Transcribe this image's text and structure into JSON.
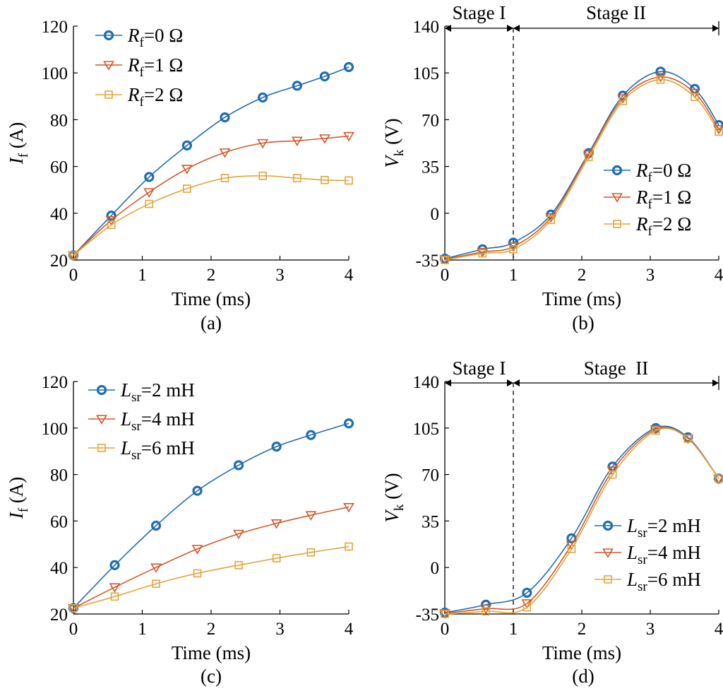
{
  "colors": {
    "blue": "#1f6db0",
    "red": "#d4572a",
    "yellow": "#e2a53a"
  },
  "chart_data": [
    {
      "panel": "(a)",
      "type": "line",
      "xlabel": "Time (ms)",
      "ylabel": {
        "base": "I",
        "sub": "f",
        "unit": " (A)"
      },
      "xlim": [
        0,
        4
      ],
      "ylim": [
        20,
        120
      ],
      "xticks": [
        0,
        1,
        2,
        3,
        4
      ],
      "yticks": [
        20,
        40,
        60,
        80,
        100,
        120
      ],
      "legend": {
        "position": "top-left"
      },
      "series": [
        {
          "name": {
            "base": "R",
            "sub": "f",
            "rest": "=0 Ω"
          },
          "marker": "circle",
          "color": "blue",
          "x": [
            0,
            0.55,
            1.1,
            1.65,
            2.2,
            2.75,
            3.25,
            3.65,
            4.0
          ],
          "y": [
            22,
            39,
            55.5,
            69,
            81,
            89.5,
            94.5,
            98.5,
            102.5
          ]
        },
        {
          "name": {
            "base": "R",
            "sub": "f",
            "rest": "=1 Ω"
          },
          "marker": "triangle-down",
          "color": "red",
          "x": [
            0,
            0.55,
            1.1,
            1.65,
            2.2,
            2.75,
            3.25,
            3.65,
            4.0
          ],
          "y": [
            22,
            37,
            49,
            59,
            66,
            70,
            71,
            72,
            73
          ]
        },
        {
          "name": {
            "base": "R",
            "sub": "f",
            "rest": "=2 Ω"
          },
          "marker": "square",
          "color": "yellow",
          "x": [
            0,
            0.55,
            1.1,
            1.65,
            2.2,
            2.75,
            3.25,
            3.65,
            4.0
          ],
          "y": [
            22,
            35,
            44,
            50.5,
            55,
            56,
            55,
            54.2,
            54
          ]
        }
      ]
    },
    {
      "panel": "(b)",
      "type": "line",
      "xlabel": "Time (ms)",
      "ylabel": {
        "base": "V",
        "sub": "k",
        "unit": " (V)"
      },
      "xlim": [
        0,
        4
      ],
      "ylim": [
        -35,
        140
      ],
      "xticks": [
        0,
        1,
        2,
        3,
        4
      ],
      "yticks": [
        -35,
        0,
        35,
        70,
        105,
        140
      ],
      "legend": {
        "position": "right"
      },
      "stages": {
        "boundary": 1.0,
        "stage1": "Stage I",
        "stage2": "Stage II"
      },
      "series": [
        {
          "name": {
            "base": "R",
            "sub": "f",
            "rest": "=0 Ω"
          },
          "marker": "circle",
          "color": "blue",
          "x": [
            0,
            0.55,
            1.0,
            1.55,
            2.1,
            2.6,
            3.15,
            3.65,
            4.0
          ],
          "y": [
            -34,
            -27,
            -22,
            -1,
            45,
            88,
            106,
            93,
            66
          ]
        },
        {
          "name": {
            "base": "R",
            "sub": "f",
            "rest": "=1 Ω"
          },
          "marker": "triangle-down",
          "color": "red",
          "x": [
            0,
            0.55,
            1.0,
            1.55,
            2.1,
            2.6,
            3.15,
            3.65,
            4.0
          ],
          "y": [
            -34.5,
            -29,
            -25,
            -3,
            44,
            86,
            102,
            90,
            63
          ]
        },
        {
          "name": {
            "base": "R",
            "sub": "f",
            "rest": "=2 Ω"
          },
          "marker": "square",
          "color": "yellow",
          "x": [
            0,
            0.55,
            1.0,
            1.55,
            2.1,
            2.6,
            3.15,
            3.65,
            4.0
          ],
          "y": [
            -35,
            -30,
            -27,
            -5,
            42,
            84,
            100,
            87,
            61
          ]
        }
      ]
    },
    {
      "panel": "(c)",
      "type": "line",
      "xlabel": "Time (ms)",
      "ylabel": {
        "base": "I",
        "sub": "f",
        "unit": " (A)"
      },
      "xlim": [
        0,
        4
      ],
      "ylim": [
        20,
        120
      ],
      "xticks": [
        0,
        1,
        2,
        3,
        4
      ],
      "yticks": [
        20,
        40,
        60,
        80,
        100,
        120
      ],
      "legend": {
        "position": "top-left"
      },
      "series": [
        {
          "name": {
            "base": "L",
            "sub": "sr",
            "rest": "=2 mH"
          },
          "marker": "circle",
          "color": "blue",
          "x": [
            0,
            0.6,
            1.2,
            1.8,
            2.4,
            2.95,
            3.45,
            4.0
          ],
          "y": [
            22.5,
            41,
            58,
            73,
            84,
            92,
            97,
            102
          ]
        },
        {
          "name": {
            "base": "L",
            "sub": "sr",
            "rest": "=4 mH"
          },
          "marker": "triangle-down",
          "color": "red",
          "x": [
            0,
            0.6,
            1.2,
            1.8,
            2.4,
            2.95,
            3.45,
            4.0
          ],
          "y": [
            22.5,
            31.5,
            40,
            48,
            54.5,
            59,
            62.5,
            66
          ]
        },
        {
          "name": {
            "base": "L",
            "sub": "sr",
            "rest": "=6 mH"
          },
          "marker": "square",
          "color": "yellow",
          "x": [
            0,
            0.6,
            1.2,
            1.8,
            2.4,
            2.95,
            3.45,
            4.0
          ],
          "y": [
            22.5,
            27.5,
            33,
            37.5,
            41,
            44,
            46.5,
            49
          ]
        }
      ]
    },
    {
      "panel": "(d)",
      "type": "line",
      "xlabel": "Time (ms)",
      "ylabel": {
        "base": "V",
        "sub": "k",
        "unit": " (V)"
      },
      "xlim": [
        0,
        4
      ],
      "ylim": [
        -35,
        140
      ],
      "xticks": [
        0,
        1,
        2,
        3,
        4
      ],
      "yticks": [
        -35,
        0,
        35,
        70,
        105,
        140
      ],
      "legend": {
        "position": "right"
      },
      "stages": {
        "boundary": 1.0,
        "stage1": "Stage I",
        "stage2": "Stage  II"
      },
      "series": [
        {
          "name": {
            "base": "L",
            "sub": "sr",
            "rest": "=2 mH"
          },
          "marker": "circle",
          "color": "blue",
          "x": [
            0,
            0.6,
            1.2,
            1.85,
            2.45,
            3.08,
            3.55,
            4.0
          ],
          "y": [
            -34,
            -28,
            -19,
            22,
            76,
            105,
            98,
            67
          ]
        },
        {
          "name": {
            "base": "L",
            "sub": "sr",
            "rest": "=4 mH"
          },
          "marker": "triangle-down",
          "color": "red",
          "x": [
            0,
            0.6,
            1.2,
            1.85,
            2.45,
            3.08,
            3.55,
            4.0
          ],
          "y": [
            -34.5,
            -31,
            -27,
            17,
            73,
            104,
            97,
            67
          ]
        },
        {
          "name": {
            "base": "L",
            "sub": "sr",
            "rest": "=6 mH"
          },
          "marker": "square",
          "color": "yellow",
          "x": [
            0,
            0.6,
            1.2,
            1.85,
            2.45,
            3.08,
            3.55,
            4.0
          ],
          "y": [
            -35,
            -33,
            -30,
            14,
            70,
            103,
            97,
            67
          ]
        }
      ]
    }
  ]
}
